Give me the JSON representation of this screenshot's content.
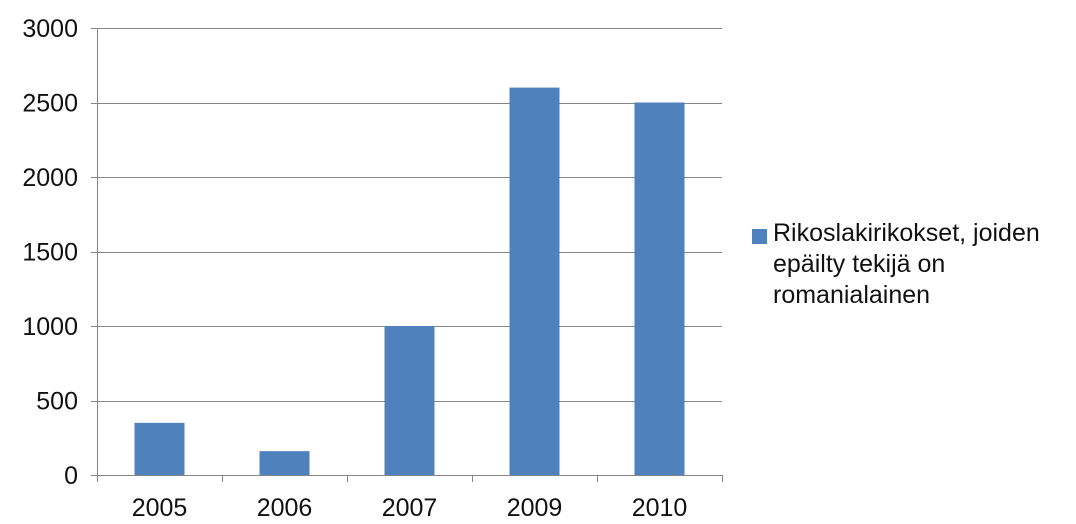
{
  "chart_data": {
    "type": "bar",
    "categories": [
      "2005",
      "2006",
      "2007",
      "2009",
      "2010"
    ],
    "series": [
      {
        "name": "Rikoslakirikokset, joiden epäilty tekijä on romanialainen",
        "values": [
          350,
          160,
          1000,
          2600,
          2500
        ],
        "color": "#4F81BD"
      }
    ],
    "ylim": [
      0,
      3000
    ],
    "yticks": [
      0,
      500,
      1000,
      1500,
      2000,
      2500,
      3000
    ],
    "ytick_labels": [
      "0",
      "500",
      "1000",
      "1500",
      "2000",
      "2500",
      "3000"
    ],
    "grid": true,
    "legend_position": "right",
    "title": "",
    "xlabel": "",
    "ylabel": ""
  }
}
